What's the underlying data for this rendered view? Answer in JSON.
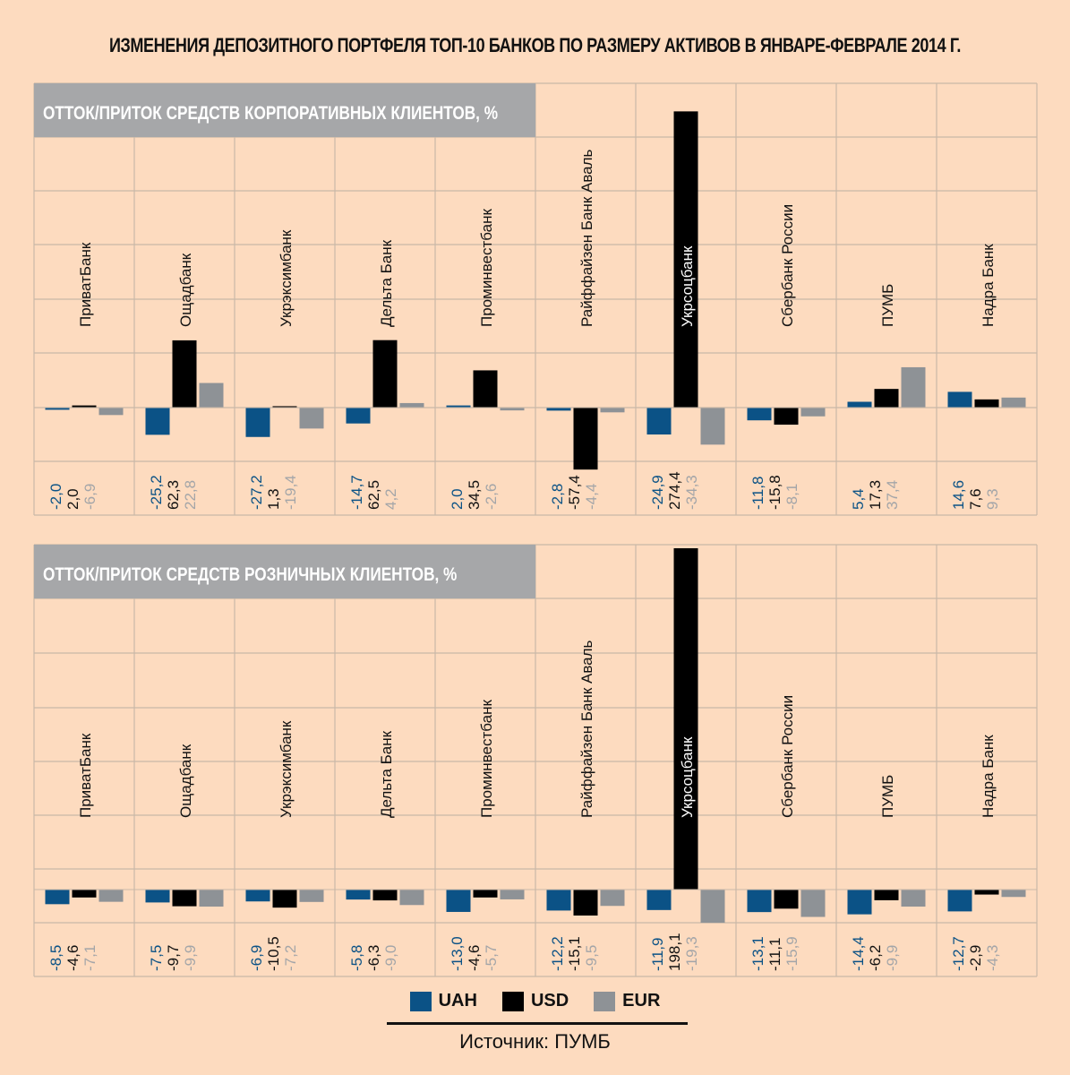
{
  "title": "ИЗМЕНЕНИЯ ДЕПОЗИТНОГО ПОРТФЕЛЯ ТОП-10 БАНКОВ ПО РАЗМЕРУ АКТИВОВ В ЯНВАРЕ-ФЕВРАЛЕ 2014 Г.",
  "source": "Источник: ПУМБ",
  "colors": {
    "UAH": "#0b5286",
    "USD": "#000000",
    "EUR": "#8e9296",
    "header": "#a6a7a9",
    "grid": "#c9b8a8",
    "background": "#fddbbf"
  },
  "legend": [
    {
      "name": "UAH",
      "color": "#0b5286"
    },
    {
      "name": "USD",
      "color": "#000000"
    },
    {
      "name": "EUR",
      "color": "#8e9296"
    }
  ],
  "chart_data": [
    {
      "type": "bar",
      "title": "ОТТОК/ПРИТОК СРЕДСТВ КОРПОРАТИВНЫХ КЛИЕНТОВ, %",
      "categories": [
        "ПриватБанк",
        "Ощадбанк",
        "Укрэксимбанк",
        "Дельта Банк",
        "Проминвестбанк",
        "Райффайзен Банк Аваль",
        "Укрсоцбанк",
        "Сбербанк России",
        "ПУМБ",
        "Надра Банк"
      ],
      "series": [
        {
          "name": "UAH",
          "values": [
            -2.0,
            -25.2,
            -27.2,
            -14.7,
            2.0,
            -2.8,
            -24.9,
            -11.8,
            5.4,
            14.6
          ]
        },
        {
          "name": "USD",
          "values": [
            2.0,
            62.3,
            1.3,
            62.5,
            34.5,
            -57.4,
            274.4,
            -15.8,
            17.3,
            7.6
          ]
        },
        {
          "name": "EUR",
          "values": [
            -6.9,
            22.8,
            -19.4,
            4.2,
            -2.6,
            -4.4,
            -34.3,
            -8.1,
            37.4,
            9.3
          ]
        }
      ],
      "labels": [
        [
          "-2,0",
          "2,0",
          "-6,9"
        ],
        [
          "-25,2",
          "62,3",
          "22,8"
        ],
        [
          "-27,2",
          "1,3",
          "-19,4"
        ],
        [
          "-14,7",
          "62,5",
          "4,2"
        ],
        [
          "2,0",
          "34,5",
          "-2,6"
        ],
        [
          "-2,8",
          "-57,4",
          "-4,4"
        ],
        [
          "-24,9",
          "274,4",
          "-34,3"
        ],
        [
          "-11,8",
          "-15,8",
          "-8,1"
        ],
        [
          "5,4",
          "17,3",
          "37,4"
        ],
        [
          "14,6",
          "7,6",
          "9,3"
        ]
      ],
      "ylim": [
        -50,
        250
      ],
      "grid": true,
      "legend": "bottom"
    },
    {
      "type": "bar",
      "title": "ОТТОК/ПРИТОК СРЕДСТВ РОЗНИЧНЫХ КЛИЕНТОВ, %",
      "categories": [
        "ПриватБанк",
        "Ощадбанк",
        "Укрэксимбанк",
        "Дельта Банк",
        "Проминвестбанк",
        "Райффайзен Банк Аваль",
        "Укрсоцбанк",
        "Сбербанк России",
        "ПУМБ",
        "Надра Банк"
      ],
      "series": [
        {
          "name": "UAH",
          "values": [
            -8.5,
            -7.5,
            -6.9,
            -5.8,
            -13.0,
            -12.2,
            -11.9,
            -13.1,
            -14.4,
            -12.7
          ]
        },
        {
          "name": "USD",
          "values": [
            -4.6,
            -9.7,
            -10.5,
            -6.3,
            -4.6,
            -15.1,
            198.1,
            -11.1,
            -6.2,
            -2.9
          ]
        },
        {
          "name": "EUR",
          "values": [
            -7.1,
            -9.9,
            -7.2,
            -9.0,
            -5.7,
            -9.5,
            -19.3,
            -15.9,
            -9.9,
            -4.3
          ]
        }
      ],
      "labels": [
        [
          "-8,5",
          "-4,6",
          "-7,1"
        ],
        [
          "-7,5",
          "-9,7",
          "-9,9"
        ],
        [
          "-6,9",
          "-10,5",
          "-7,2"
        ],
        [
          "-5,8",
          "-6,3",
          "-9,0"
        ],
        [
          "-13,0",
          "-4,6",
          "-5,7"
        ],
        [
          "-12,2",
          "-15,1",
          "-9,5"
        ],
        [
          "-11,9",
          "198,1",
          "-19,3"
        ],
        [
          "-13,1",
          "-11,1",
          "-15,9"
        ],
        [
          "-14,4",
          "-6,2",
          "-9,9"
        ],
        [
          "-12,7",
          "-2,9",
          "-4,3"
        ]
      ],
      "ylim": [
        -20,
        180
      ],
      "grid": true,
      "legend": "bottom"
    }
  ]
}
